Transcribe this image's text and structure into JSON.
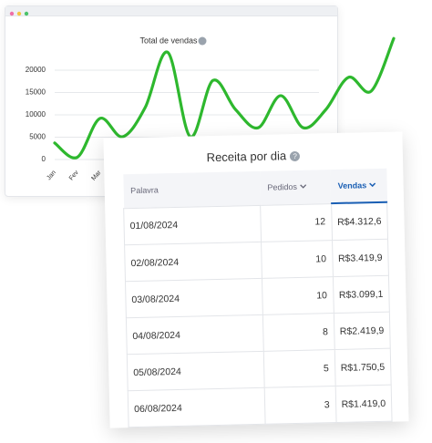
{
  "chart_data": {
    "type": "line",
    "title": "Total de vendas",
    "categories": [
      "Jan",
      "Fev",
      "Mar",
      null,
      null,
      null,
      null,
      null,
      null,
      null,
      null,
      null,
      null,
      null,
      null,
      null
    ],
    "series": [
      {
        "color": "#2eb82e",
        "values": [
          3700,
          500,
          9200,
          5100,
          11600,
          24000,
          5100,
          17700,
          11200,
          7100,
          14300,
          7100,
          11200,
          18400,
          15300,
          27100
        ]
      }
    ],
    "ylim": [
      0,
      27000
    ],
    "yticks": [
      0,
      5000,
      10000,
      15000,
      20000
    ],
    "grid": true
  },
  "table": {
    "title": "Receita por dia",
    "columns": [
      "Palavra",
      "Pedidos",
      "Vendas"
    ],
    "rows": [
      [
        "01/08/2024",
        12,
        "R$4.312,6"
      ],
      [
        "02/08/2024",
        10,
        "R$3.419,9"
      ],
      [
        "03/08/2024",
        10,
        "R$3.099,1"
      ],
      [
        "04/08/2024",
        8,
        "R$2.419,9"
      ],
      [
        "05/08/2024",
        5,
        "R$1.750,5"
      ],
      [
        "06/08/2024",
        3,
        "R$1.419,0"
      ]
    ]
  }
}
